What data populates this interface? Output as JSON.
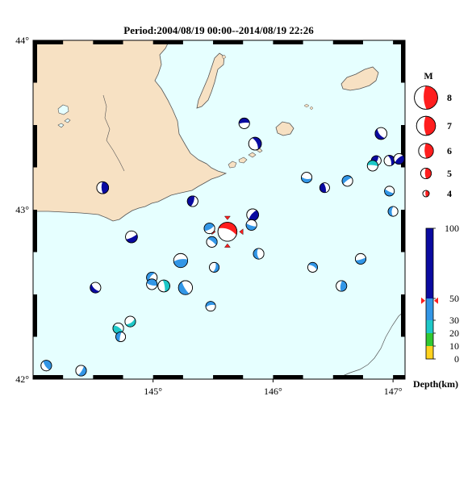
{
  "title": "Period:2004/08/19 00:00--2014/08/19 22:26",
  "map": {
    "extent": {
      "lon_min": 144.0,
      "lon_max": 147.1,
      "lat_min": 42.0,
      "lat_max": 44.0
    },
    "lat_ticks": [
      {
        "value": 44,
        "label": "44°"
      },
      {
        "value": 43,
        "label": "43°"
      },
      {
        "value": 42,
        "label": "42°"
      }
    ],
    "lon_ticks": [
      {
        "value": 145,
        "label": "145°"
      },
      {
        "value": 146,
        "label": "146°"
      },
      {
        "value": 147,
        "label": "147°"
      }
    ],
    "colors": {
      "sea": "#e6ffff",
      "land": "#f7e1c3",
      "coast": "#555555"
    }
  },
  "events": [
    {
      "lon": 145.62,
      "lat": 42.87,
      "mag": 7.0,
      "depth": 48,
      "main": true
    },
    {
      "lon": 144.58,
      "lat": 43.13,
      "mag": 5.3,
      "depth": 80
    },
    {
      "lon": 144.82,
      "lat": 42.84,
      "mag": 5.3,
      "depth": 85
    },
    {
      "lon": 144.52,
      "lat": 42.54,
      "mag": 5.0,
      "depth": 90
    },
    {
      "lon": 145.33,
      "lat": 43.05,
      "mag": 5.0,
      "depth": 80
    },
    {
      "lon": 145.76,
      "lat": 43.51,
      "mag": 5.0,
      "depth": 90
    },
    {
      "lon": 145.85,
      "lat": 43.39,
      "mag": 5.5,
      "depth": 95
    },
    {
      "lon": 145.83,
      "lat": 42.97,
      "mag": 5.3,
      "depth": 85
    },
    {
      "lon": 145.82,
      "lat": 42.91,
      "mag": 5.0,
      "depth": 40
    },
    {
      "lon": 145.88,
      "lat": 42.74,
      "mag": 5.0,
      "depth": 35
    },
    {
      "lon": 145.47,
      "lat": 42.89,
      "mag": 5.0,
      "depth": 38
    },
    {
      "lon": 145.49,
      "lat": 42.81,
      "mag": 5.0,
      "depth": 38
    },
    {
      "lon": 145.51,
      "lat": 42.66,
      "mag": 4.8,
      "depth": 38
    },
    {
      "lon": 145.23,
      "lat": 42.7,
      "mag": 5.8,
      "depth": 35
    },
    {
      "lon": 145.27,
      "lat": 42.54,
      "mag": 5.8,
      "depth": 35
    },
    {
      "lon": 144.99,
      "lat": 42.6,
      "mag": 5.0,
      "depth": 38
    },
    {
      "lon": 144.99,
      "lat": 42.56,
      "mag": 5.0,
      "depth": 35
    },
    {
      "lon": 145.09,
      "lat": 42.55,
      "mag": 5.3,
      "depth": 25
    },
    {
      "lon": 144.81,
      "lat": 42.34,
      "mag": 5.0,
      "depth": 25
    },
    {
      "lon": 144.71,
      "lat": 42.3,
      "mag": 5.0,
      "depth": 25
    },
    {
      "lon": 144.73,
      "lat": 42.25,
      "mag": 4.8,
      "depth": 35
    },
    {
      "lon": 145.48,
      "lat": 42.43,
      "mag": 4.8,
      "depth": 35
    },
    {
      "lon": 144.11,
      "lat": 42.08,
      "mag": 5.0,
      "depth": 35
    },
    {
      "lon": 144.4,
      "lat": 42.05,
      "mag": 5.0,
      "depth": 40
    },
    {
      "lon": 146.28,
      "lat": 43.19,
      "mag": 5.0,
      "depth": 35
    },
    {
      "lon": 146.43,
      "lat": 43.13,
      "mag": 4.8,
      "depth": 80
    },
    {
      "lon": 146.62,
      "lat": 43.17,
      "mag": 5.0,
      "depth": 35
    },
    {
      "lon": 146.33,
      "lat": 42.66,
      "mag": 4.8,
      "depth": 38
    },
    {
      "lon": 146.57,
      "lat": 42.55,
      "mag": 5.0,
      "depth": 38
    },
    {
      "lon": 146.73,
      "lat": 42.71,
      "mag": 5.0,
      "depth": 35
    },
    {
      "lon": 146.9,
      "lat": 43.45,
      "mag": 5.3,
      "depth": 85
    },
    {
      "lon": 146.86,
      "lat": 43.29,
      "mag": 4.8,
      "depth": 90
    },
    {
      "lon": 146.83,
      "lat": 43.26,
      "mag": 5.0,
      "depth": 25
    },
    {
      "lon": 146.97,
      "lat": 43.29,
      "mag": 5.0,
      "depth": 90
    },
    {
      "lon": 147.05,
      "lat": 43.3,
      "mag": 5.0,
      "depth": 90
    },
    {
      "lon": 146.97,
      "lat": 43.11,
      "mag": 4.8,
      "depth": 35
    },
    {
      "lon": 147.0,
      "lat": 42.99,
      "mag": 4.8,
      "depth": 35
    }
  ],
  "magnitude_legend": {
    "title": "M",
    "entries": [
      {
        "label": "8",
        "value": 8
      },
      {
        "label": "7",
        "value": 7
      },
      {
        "label": "6",
        "value": 6
      },
      {
        "label": "5",
        "value": 5
      },
      {
        "label": "4",
        "value": 4
      }
    ]
  },
  "depth_legend": {
    "title": "Depth(km)",
    "marker_depth": 48,
    "bands": [
      {
        "from": 0,
        "to": 10,
        "color": "#ffd21e"
      },
      {
        "from": 10,
        "to": 20,
        "color": "#32c832"
      },
      {
        "from": 20,
        "to": 30,
        "color": "#1ec8c8"
      },
      {
        "from": 30,
        "to": 50,
        "color": "#3296e6"
      },
      {
        "from": 50,
        "to": 100,
        "color": "#0a0aa0"
      }
    ],
    "ticks": [
      {
        "value": 100,
        "label": "100"
      },
      {
        "value": 50,
        "label": "50"
      },
      {
        "value": 30,
        "label": "30"
      },
      {
        "value": 20,
        "label": "20"
      },
      {
        "value": 10,
        "label": "10"
      },
      {
        "value": 0,
        "label": "0"
      }
    ]
  },
  "main_event_color": "#ff1e1e"
}
